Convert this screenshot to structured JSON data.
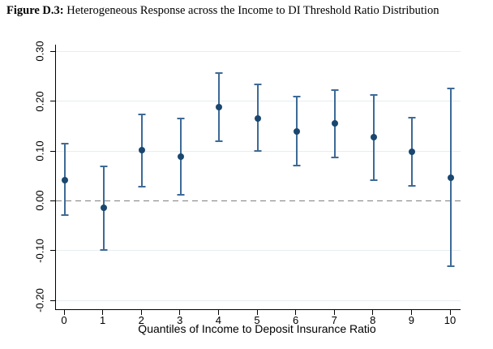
{
  "figure": {
    "label": "Figure D.3:",
    "title_rest": " Heterogeneous Response across the Income to DI Threshold Ratio Distribution"
  },
  "chart_data": {
    "type": "scatter",
    "subtype": "coefficient-plot-with-95ci",
    "title": "Figure D.3: Heterogeneous Response across the Income to DI Threshold Ratio Distribution",
    "xlabel": "Quantiles of Income to Deposit Insurance Ratio",
    "ylabel": "",
    "x": [
      0,
      1,
      2,
      3,
      4,
      5,
      6,
      7,
      8,
      9,
      10
    ],
    "x_tick_labels": [
      "0",
      "1",
      "2",
      "3",
      "4",
      "5",
      "6",
      "7",
      "8",
      "9",
      "10"
    ],
    "estimates": [
      0.042,
      -0.014,
      0.101,
      0.088,
      0.188,
      0.166,
      0.139,
      0.155,
      0.128,
      0.098,
      0.047
    ],
    "ci_low": [
      -0.028,
      -0.098,
      0.028,
      0.012,
      0.12,
      0.1,
      0.071,
      0.087,
      0.042,
      0.03,
      -0.131
    ],
    "ci_high": [
      0.115,
      0.069,
      0.174,
      0.165,
      0.257,
      0.233,
      0.21,
      0.223,
      0.213,
      0.167,
      0.226
    ],
    "y_ticks": [
      {
        "value": 0.3,
        "label": "0.30"
      },
      {
        "value": 0.2,
        "label": "0.20"
      },
      {
        "value": 0.1,
        "label": "0.10"
      },
      {
        "value": 0.0,
        "label": "0.00"
      },
      {
        "value": -0.1,
        "label": "-0.10"
      },
      {
        "value": -0.2,
        "label": "-0.20"
      }
    ],
    "ylim": [
      -0.2175,
      0.3135
    ],
    "reference_line": 0.0,
    "grid": true,
    "legend": "none",
    "colors": {
      "marker": "#1a476f",
      "ci_bar": "#3d6a96",
      "grid": "#e7edf1",
      "zero_line": "#808080",
      "axis": "#000000"
    }
  }
}
